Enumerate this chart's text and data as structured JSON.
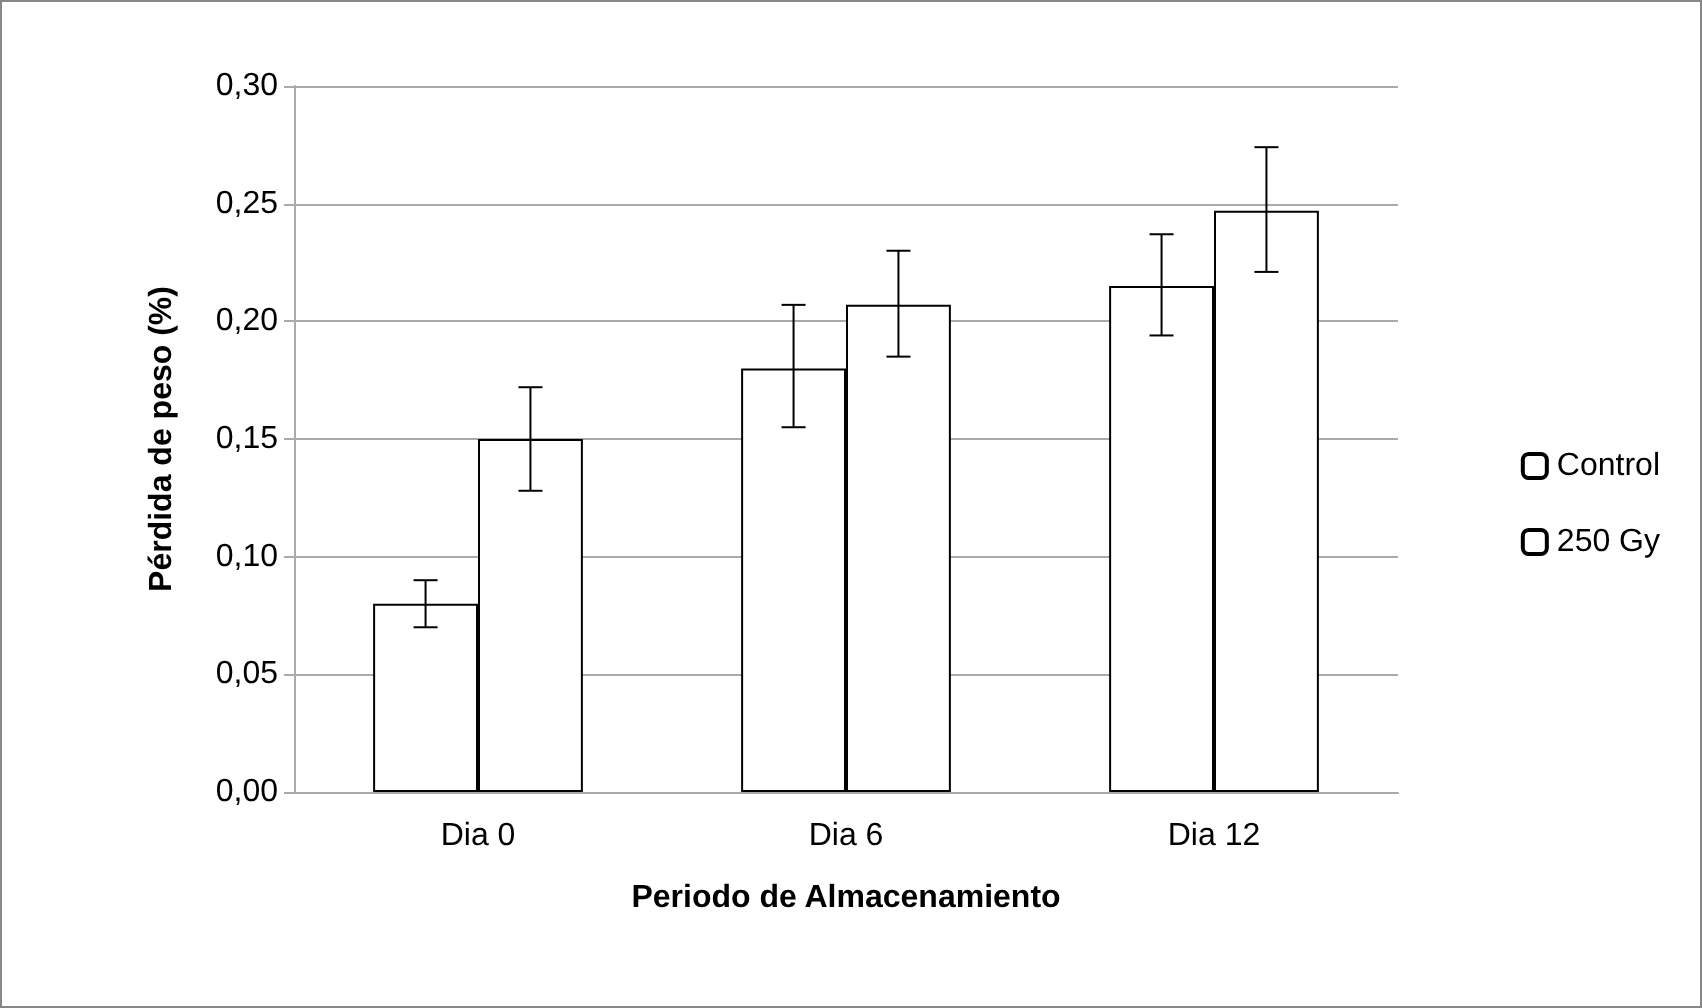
{
  "chart_data": {
    "type": "bar",
    "xlabel": "Periodo de Almacenamiento",
    "ylabel": "Pérdida de peso (%)",
    "categories": [
      "Dia 0",
      "Dia 6",
      "Dia 12"
    ],
    "series": [
      {
        "name": "Control",
        "color": "#ffffff",
        "values": [
          0.08,
          0.18,
          0.215
        ],
        "errors": [
          [
            0.07,
            0.09
          ],
          [
            0.155,
            0.207
          ],
          [
            0.194,
            0.237
          ]
        ]
      },
      {
        "name": "250 Gy",
        "color": "#ffffff",
        "values": [
          0.15,
          0.207,
          0.247
        ],
        "errors": [
          [
            0.128,
            0.172
          ],
          [
            0.185,
            0.23
          ],
          [
            0.221,
            0.274
          ]
        ]
      }
    ],
    "ylim": [
      0,
      0.3
    ],
    "yticks": [
      {
        "value": 0,
        "label": "0,00"
      },
      {
        "value": 0.05,
        "label": "0,05"
      },
      {
        "value": 0.1,
        "label": "0,10"
      },
      {
        "value": 0.15,
        "label": "0,15"
      },
      {
        "value": 0.2,
        "label": "0,20"
      },
      {
        "value": 0.25,
        "label": "0,25"
      },
      {
        "value": 0.3,
        "label": "0,30"
      }
    ],
    "grid": "y",
    "legend": "right"
  }
}
